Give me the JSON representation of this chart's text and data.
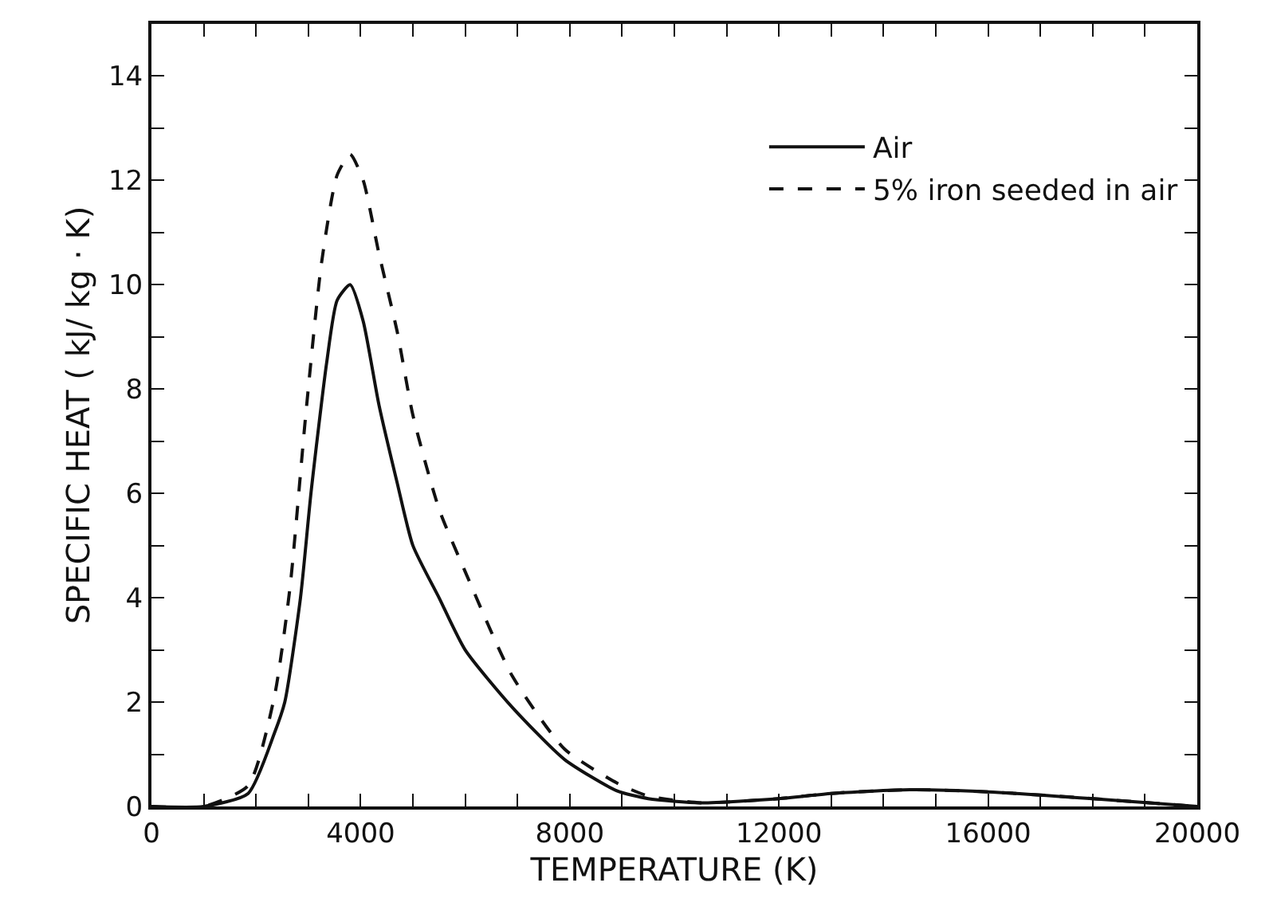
{
  "chart_data": {
    "type": "line",
    "xlabel": "TEMPERATURE (K)",
    "ylabel": "SPECIFIC HEAT ( kJ/ kg · K)",
    "xlim": [
      0,
      20000
    ],
    "ylim": [
      0,
      15
    ],
    "xticks": [
      0,
      {
        "value": 1000,
        "label": null
      },
      {
        "value": 2000,
        "label": null
      },
      {
        "value": 3000,
        "label": null
      },
      4000,
      {
        "value": 5000,
        "label": null
      },
      {
        "value": 6000,
        "label": null
      },
      {
        "value": 7000,
        "label": null
      },
      8000,
      {
        "value": 9000,
        "label": null
      },
      {
        "value": 10000,
        "label": null
      },
      {
        "value": 11000,
        "label": null
      },
      12000,
      {
        "value": 13000,
        "label": null
      },
      {
        "value": 14000,
        "label": null
      },
      {
        "value": 15000,
        "label": null
      },
      16000,
      {
        "value": 17000,
        "label": null
      },
      {
        "value": 18000,
        "label": null
      },
      {
        "value": 19000,
        "label": null
      },
      20000
    ],
    "yticks": [
      0,
      {
        "value": 1,
        "label": null
      },
      2,
      {
        "value": 3,
        "label": null
      },
      4,
      {
        "value": 5,
        "label": null
      },
      6,
      {
        "value": 7,
        "label": null
      },
      8,
      {
        "value": 9,
        "label": null
      },
      10,
      {
        "value": 11,
        "label": null
      },
      12,
      {
        "value": 13,
        "label": null
      },
      14
    ],
    "legend": "top right",
    "marker": "none",
    "series": [
      {
        "name": "Air",
        "color": "#111111",
        "line_style": "solid",
        "x": [
          0,
          1000,
          1850,
          2350,
          2550,
          2850,
          3050,
          3350,
          3550,
          3800,
          4050,
          4350,
          4700,
          5000,
          5500,
          6000,
          6900,
          7900,
          8900,
          9500,
          10500,
          12000,
          13000,
          14500,
          16000,
          18000,
          20000
        ],
        "values": [
          0,
          0,
          0.25,
          1.4,
          2.0,
          4.0,
          6.0,
          8.5,
          9.7,
          10.0,
          9.3,
          7.7,
          6.2,
          5.0,
          4.0,
          3.0,
          1.9,
          0.9,
          0.3,
          0.15,
          0.07,
          0.15,
          0.25,
          0.32,
          0.28,
          0.15,
          0
        ]
      },
      {
        "name": "5% iron seeded in air",
        "color": "#111111",
        "line_style": "dashed",
        "x": [
          0,
          1000,
          1850,
          2350,
          2650,
          2950,
          3250,
          3550,
          3800,
          4050,
          4350,
          4700,
          5000,
          5500,
          6000,
          6900,
          7900,
          8900,
          9500,
          10500,
          12000,
          13000,
          14500,
          16000,
          18000,
          20000
        ],
        "values": [
          0,
          0,
          0.4,
          2.1,
          4.2,
          7.5,
          10.4,
          12.1,
          12.5,
          12.0,
          10.6,
          9.1,
          7.5,
          5.7,
          4.5,
          2.5,
          1.1,
          0.45,
          0.2,
          0.07,
          0.15,
          0.25,
          0.32,
          0.28,
          0.15,
          0
        ]
      }
    ]
  }
}
